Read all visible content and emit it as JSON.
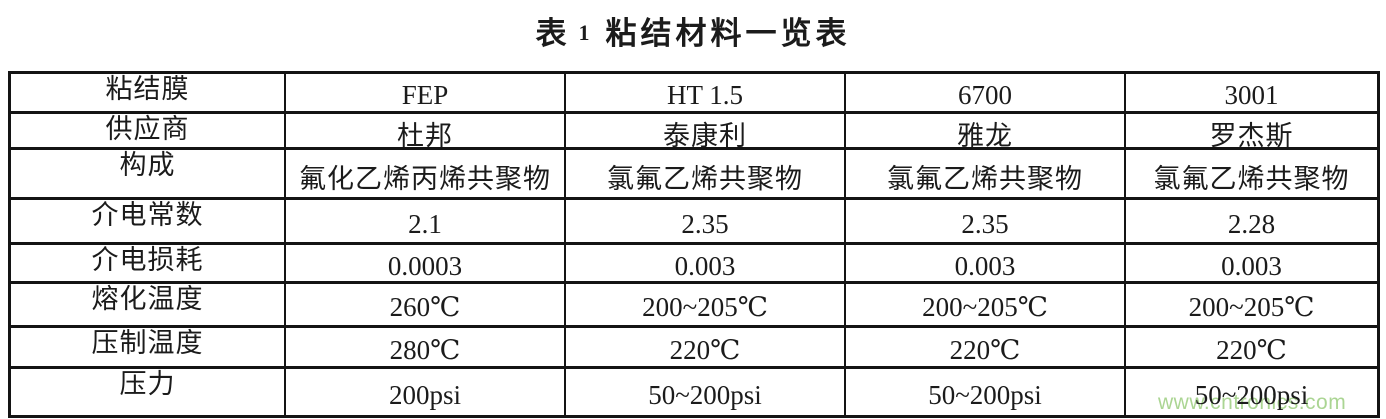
{
  "title": {
    "table_word": "表",
    "table_number": "1",
    "title_text": "粘结材料一览表"
  },
  "watermark": {
    "text": "www.cntronics.com",
    "color": "#a2d188"
  },
  "colors": {
    "border": "#141414",
    "text": "#1b1b1b",
    "background": "#ffffff"
  },
  "table": {
    "rows": [
      {
        "label": "粘结膜",
        "values": [
          "FEP",
          "HT 1.5",
          "6700",
          "3001"
        ]
      },
      {
        "label": "供应商",
        "values": [
          "杜邦",
          "泰康利",
          "雅龙",
          "罗杰斯"
        ]
      },
      {
        "label": "构成",
        "values": [
          "氟化乙烯丙烯共聚物",
          "氯氟乙烯共聚物",
          "氯氟乙烯共聚物",
          "氯氟乙烯共聚物"
        ]
      },
      {
        "label": "介电常数",
        "values": [
          "2.1",
          "2.35",
          "2.35",
          "2.28"
        ]
      },
      {
        "label": "介电损耗",
        "values": [
          "0.0003",
          "0.003",
          "0.003",
          "0.003"
        ]
      },
      {
        "label": "熔化温度",
        "values": [
          "260℃",
          "200~205℃",
          "200~205℃",
          "200~205℃"
        ]
      },
      {
        "label": "压制温度",
        "values": [
          "280℃",
          "220℃",
          "220℃",
          "220℃"
        ]
      },
      {
        "label": "压力",
        "values": [
          "200psi",
          "50~200psi",
          "50~200psi",
          "50~200psi"
        ]
      }
    ]
  }
}
